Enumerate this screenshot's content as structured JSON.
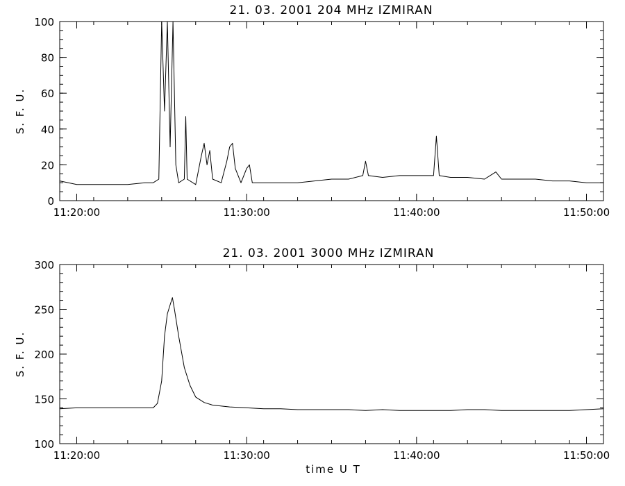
{
  "chart_data": [
    {
      "type": "line",
      "title": "21.  03.  2001    204 MHz    IZMIRAN",
      "ylabel": "S. F. U.",
      "xlabel": "",
      "x_unit": "time (UT)",
      "xlim": [
        "11:19:00",
        "11:51:00"
      ],
      "ylim": [
        0,
        100
      ],
      "x_tick_labels": [
        "11:20:00",
        "11:30:00",
        "11:40:00",
        "11:50:00"
      ],
      "y_tick_labels": [
        "0",
        "20",
        "40",
        "60",
        "80",
        "100"
      ],
      "grid": false,
      "series": [
        {
          "points": [
            [
              "11:19:00",
              11
            ],
            [
              "11:20:00",
              9
            ],
            [
              "11:21:00",
              9
            ],
            [
              "11:22:00",
              9
            ],
            [
              "11:23:00",
              9
            ],
            [
              "11:24:00",
              10
            ],
            [
              "11:24:30",
              10
            ],
            [
              "11:24:50",
              12
            ],
            [
              "11:25:00",
              100
            ],
            [
              "11:25:10",
              50
            ],
            [
              "11:25:20",
              100
            ],
            [
              "11:25:30",
              30
            ],
            [
              "11:25:40",
              100
            ],
            [
              "11:25:50",
              20
            ],
            [
              "11:26:00",
              10
            ],
            [
              "11:26:20",
              12
            ],
            [
              "11:26:25",
              47
            ],
            [
              "11:26:30",
              12
            ],
            [
              "11:27:00",
              9
            ],
            [
              "11:27:20",
              25
            ],
            [
              "11:27:30",
              32
            ],
            [
              "11:27:40",
              20
            ],
            [
              "11:27:50",
              28
            ],
            [
              "11:28:00",
              12
            ],
            [
              "11:28:30",
              10
            ],
            [
              "11:28:50",
              22
            ],
            [
              "11:29:00",
              30
            ],
            [
              "11:29:10",
              32
            ],
            [
              "11:29:20",
              18
            ],
            [
              "11:29:40",
              10
            ],
            [
              "11:30:00",
              18
            ],
            [
              "11:30:10",
              20
            ],
            [
              "11:30:20",
              10
            ],
            [
              "11:31:00",
              10
            ],
            [
              "11:32:00",
              10
            ],
            [
              "11:33:00",
              10
            ],
            [
              "11:34:00",
              11
            ],
            [
              "11:35:00",
              12
            ],
            [
              "11:36:00",
              12
            ],
            [
              "11:36:50",
              14
            ],
            [
              "11:37:00",
              22
            ],
            [
              "11:37:10",
              14
            ],
            [
              "11:38:00",
              13
            ],
            [
              "11:39:00",
              14
            ],
            [
              "11:40:00",
              14
            ],
            [
              "11:41:00",
              14
            ],
            [
              "11:41:10",
              36
            ],
            [
              "11:41:20",
              14
            ],
            [
              "11:42:00",
              13
            ],
            [
              "11:43:00",
              13
            ],
            [
              "11:44:00",
              12
            ],
            [
              "11:44:40",
              16
            ],
            [
              "11:45:00",
              12
            ],
            [
              "11:46:00",
              12
            ],
            [
              "11:47:00",
              12
            ],
            [
              "11:48:00",
              11
            ],
            [
              "11:49:00",
              11
            ],
            [
              "11:50:00",
              10
            ],
            [
              "11:51:00",
              10
            ]
          ]
        }
      ]
    },
    {
      "type": "line",
      "title": "21.  03.  2001    3000 MHz    IZMIRAN",
      "ylabel": "S. F. U.",
      "xlabel": "time   U T",
      "x_unit": "time (UT)",
      "xlim": [
        "11:19:00",
        "11:51:00"
      ],
      "ylim": [
        100,
        300
      ],
      "x_tick_labels": [
        "11:20:00",
        "11:30:00",
        "11:40:00",
        "11:50:00"
      ],
      "y_tick_labels": [
        "100",
        "150",
        "200",
        "250",
        "300"
      ],
      "grid": false,
      "series": [
        {
          "points": [
            [
              "11:19:00",
              139
            ],
            [
              "11:20:00",
              140
            ],
            [
              "11:21:00",
              140
            ],
            [
              "11:22:00",
              140
            ],
            [
              "11:23:00",
              140
            ],
            [
              "11:24:00",
              140
            ],
            [
              "11:24:30",
              140
            ],
            [
              "11:24:45",
              145
            ],
            [
              "11:25:00",
              170
            ],
            [
              "11:25:10",
              220
            ],
            [
              "11:25:20",
              245
            ],
            [
              "11:25:30",
              255
            ],
            [
              "11:25:38",
              263
            ],
            [
              "11:25:45",
              250
            ],
            [
              "11:26:00",
              220
            ],
            [
              "11:26:20",
              185
            ],
            [
              "11:26:40",
              165
            ],
            [
              "11:27:00",
              152
            ],
            [
              "11:27:30",
              146
            ],
            [
              "11:28:00",
              143
            ],
            [
              "11:29:00",
              141
            ],
            [
              "11:30:00",
              140
            ],
            [
              "11:31:00",
              139
            ],
            [
              "11:32:00",
              139
            ],
            [
              "11:33:00",
              138
            ],
            [
              "11:34:00",
              138
            ],
            [
              "11:35:00",
              138
            ],
            [
              "11:36:00",
              138
            ],
            [
              "11:37:00",
              137
            ],
            [
              "11:38:00",
              138
            ],
            [
              "11:39:00",
              137
            ],
            [
              "11:40:00",
              137
            ],
            [
              "11:41:00",
              137
            ],
            [
              "11:42:00",
              137
            ],
            [
              "11:43:00",
              138
            ],
            [
              "11:44:00",
              138
            ],
            [
              "11:45:00",
              137
            ],
            [
              "11:46:00",
              137
            ],
            [
              "11:47:00",
              137
            ],
            [
              "11:48:00",
              137
            ],
            [
              "11:49:00",
              137
            ],
            [
              "11:50:00",
              138
            ],
            [
              "11:51:00",
              139
            ]
          ]
        }
      ]
    }
  ]
}
